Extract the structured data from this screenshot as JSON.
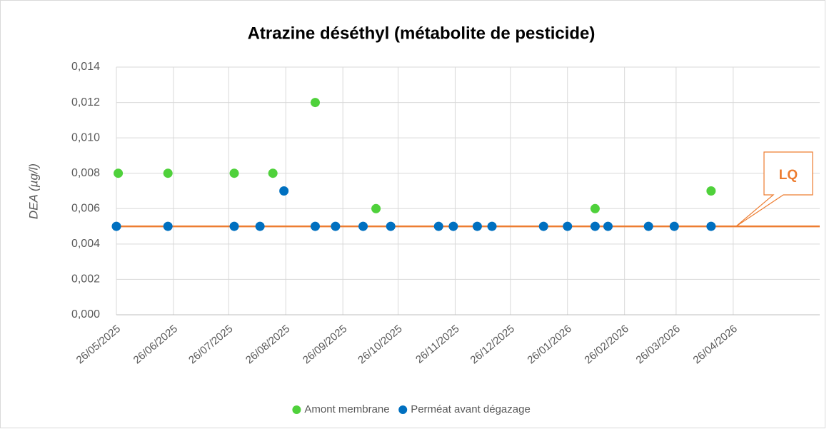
{
  "chart_data": {
    "type": "scatter",
    "title": "Atrazine déséthyl (métabolite de pesticide)",
    "y_label": "DEA (µg/l)",
    "xlim": [
      "26/05/2025",
      "12/06/2026"
    ],
    "xticks": [
      "26/05/2025",
      "26/06/2025",
      "26/07/2025",
      "26/08/2025",
      "26/09/2025",
      "26/10/2025",
      "26/11/2025",
      "26/12/2025",
      "26/01/2026",
      "26/02/2026",
      "26/03/2026",
      "26/04/2026"
    ],
    "ylim": [
      0,
      0.014
    ],
    "yticks": [
      {
        "value": 0,
        "label": "0,000"
      },
      {
        "value": 0.002,
        "label": "0,002"
      },
      {
        "value": 0.004,
        "label": "0,004"
      },
      {
        "value": 0.006,
        "label": "0,006"
      },
      {
        "value": 0.008,
        "label": "0,008"
      },
      {
        "value": 0.01,
        "label": "0,010"
      },
      {
        "value": 0.012,
        "label": "0,012"
      },
      {
        "value": 0.014,
        "label": "0,014"
      }
    ],
    "grid": true,
    "legend": "bottom",
    "reference_line": {
      "value": 0.005,
      "label": "LQ",
      "color": "#ed7d31"
    },
    "series": [
      {
        "name": "Amont membrane",
        "color": "#4fd13b",
        "x": [
          "27/05/2025",
          "23/06/2025",
          "29/07/2025",
          "19/08/2025",
          "11/09/2025",
          "14/10/2025",
          "10/02/2026",
          "14/04/2026"
        ],
        "values": [
          0.008,
          0.008,
          0.008,
          0.008,
          0.012,
          0.006,
          0.006,
          0.007
        ]
      },
      {
        "name": "Perméat avant dégazage",
        "color": "#0070c0",
        "x": [
          "26/05/2025",
          "23/06/2025",
          "29/07/2025",
          "12/08/2025",
          "25/08/2025",
          "11/09/2025",
          "22/09/2025",
          "07/10/2025",
          "22/10/2025",
          "17/11/2025",
          "25/11/2025",
          "08/12/2025",
          "16/12/2025",
          "13/01/2026",
          "26/01/2026",
          "10/02/2026",
          "17/02/2026",
          "11/03/2026",
          "25/03/2026",
          "14/04/2026"
        ],
        "values": [
          0.005,
          0.005,
          0.005,
          0.005,
          0.007,
          0.005,
          0.005,
          0.005,
          0.005,
          0.005,
          0.005,
          0.005,
          0.005,
          0.005,
          0.005,
          0.005,
          0.005,
          0.005,
          0.005,
          0.005
        ]
      }
    ]
  }
}
